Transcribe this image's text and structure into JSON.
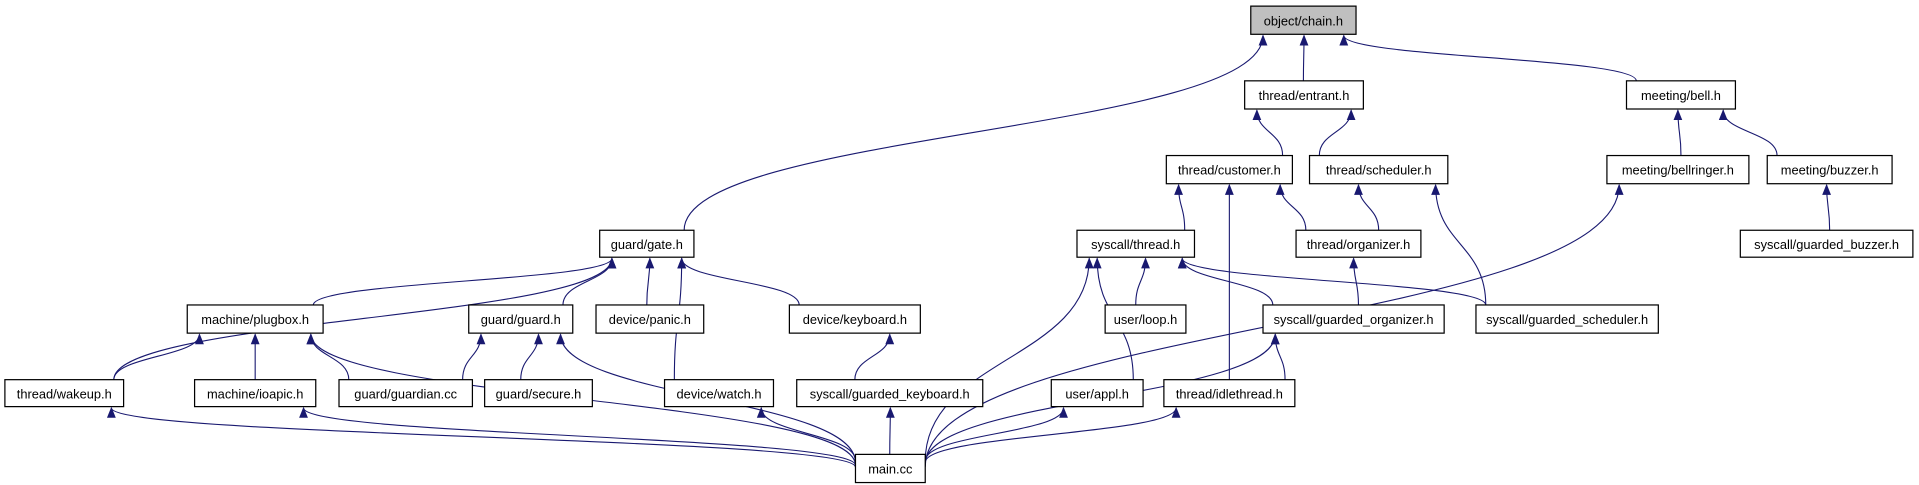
{
  "edge_color": "#191970",
  "root_fill": "#bfbfbf",
  "nodes": [
    {
      "id": "chain",
      "label": "object/chain.h",
      "root": true
    },
    {
      "id": "entrant",
      "label": "thread/entrant.h"
    },
    {
      "id": "bell",
      "label": "meeting/bell.h"
    },
    {
      "id": "customer",
      "label": "thread/customer.h"
    },
    {
      "id": "scheduler",
      "label": "thread/scheduler.h"
    },
    {
      "id": "bellringer",
      "label": "meeting/bellringer.h"
    },
    {
      "id": "buzzer",
      "label": "meeting/buzzer.h"
    },
    {
      "id": "gate",
      "label": "guard/gate.h"
    },
    {
      "id": "sthread",
      "label": "syscall/thread.h"
    },
    {
      "id": "organizer",
      "label": "thread/organizer.h"
    },
    {
      "id": "gbuzzer",
      "label": "syscall/guarded_buzzer.h"
    },
    {
      "id": "plugbox",
      "label": "machine/plugbox.h"
    },
    {
      "id": "guard",
      "label": "guard/guard.h"
    },
    {
      "id": "panic",
      "label": "device/panic.h"
    },
    {
      "id": "keyboard",
      "label": "device/keyboard.h"
    },
    {
      "id": "loop",
      "label": "user/loop.h"
    },
    {
      "id": "gorganizer",
      "label": "syscall/guarded_organizer.h"
    },
    {
      "id": "gscheduler",
      "label": "syscall/guarded_scheduler.h"
    },
    {
      "id": "wakeup",
      "label": "thread/wakeup.h"
    },
    {
      "id": "ioapic",
      "label": "machine/ioapic.h"
    },
    {
      "id": "guardian",
      "label": "guard/guardian.cc"
    },
    {
      "id": "secure",
      "label": "guard/secure.h"
    },
    {
      "id": "watch",
      "label": "device/watch.h"
    },
    {
      "id": "gkeyboard",
      "label": "syscall/guarded_keyboard.h"
    },
    {
      "id": "appl",
      "label": "user/appl.h"
    },
    {
      "id": "idlethread",
      "label": "thread/idlethread.h"
    },
    {
      "id": "main",
      "label": "main.cc"
    }
  ],
  "edges": [
    [
      "entrant",
      "chain"
    ],
    [
      "bell",
      "chain"
    ],
    [
      "gate",
      "chain"
    ],
    [
      "customer",
      "entrant"
    ],
    [
      "scheduler",
      "entrant"
    ],
    [
      "bellringer",
      "bell"
    ],
    [
      "buzzer",
      "bell"
    ],
    [
      "gbuzzer",
      "buzzer"
    ],
    [
      "sthread",
      "customer"
    ],
    [
      "organizer",
      "customer"
    ],
    [
      "idlethread",
      "customer"
    ],
    [
      "organizer",
      "scheduler"
    ],
    [
      "gscheduler",
      "scheduler"
    ],
    [
      "loop",
      "sthread"
    ],
    [
      "gorganizer",
      "sthread"
    ],
    [
      "gscheduler",
      "sthread"
    ],
    [
      "appl",
      "sthread"
    ],
    [
      "main",
      "sthread"
    ],
    [
      "gorganizer",
      "organizer"
    ],
    [
      "idlethread",
      "gorganizer"
    ],
    [
      "main",
      "gorganizer"
    ],
    [
      "plugbox",
      "gate"
    ],
    [
      "wakeup",
      "gate"
    ],
    [
      "guard",
      "gate"
    ],
    [
      "panic",
      "gate"
    ],
    [
      "watch",
      "gate"
    ],
    [
      "keyboard",
      "gate"
    ],
    [
      "wakeup",
      "plugbox"
    ],
    [
      "ioapic",
      "plugbox"
    ],
    [
      "guardian",
      "plugbox"
    ],
    [
      "main",
      "plugbox"
    ],
    [
      "guardian",
      "guard"
    ],
    [
      "secure",
      "guard"
    ],
    [
      "main",
      "guard"
    ],
    [
      "gkeyboard",
      "keyboard"
    ],
    [
      "main",
      "wakeup"
    ],
    [
      "main",
      "ioapic"
    ],
    [
      "main",
      "watch"
    ],
    [
      "main",
      "gkeyboard"
    ],
    [
      "main",
      "appl"
    ],
    [
      "main",
      "idlethread"
    ],
    [
      "main",
      "bellringer"
    ]
  ]
}
